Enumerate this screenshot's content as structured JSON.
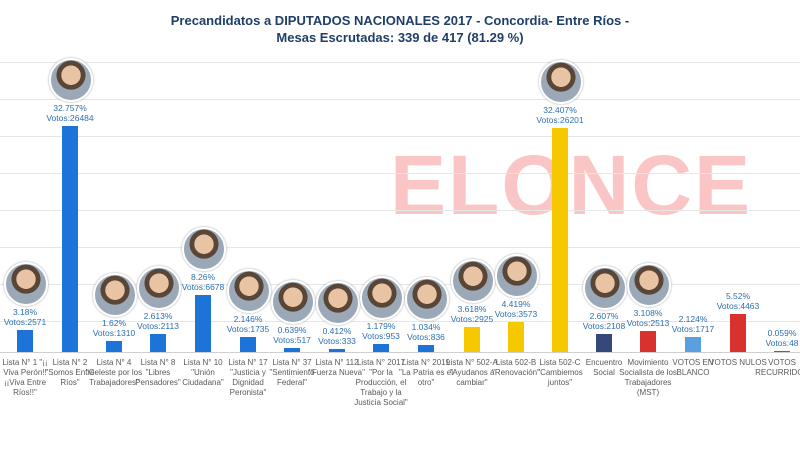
{
  "colors": {
    "blue": "#1e73d8",
    "yellow": "#f6c800",
    "navy": "#34497a",
    "red": "#d9312e",
    "lightblue": "#5aa0e0",
    "label": "#2d6eb0"
  },
  "watermark": "ELONCE",
  "chart_data": {
    "type": "bar",
    "title": "Precandidatos a DIPUTADOS NACIONALES 2017 - Concordia- Entre Ríos -",
    "subtitle": "Mesas Escrutadas: 339 de 417 (81.29 %)",
    "ylim": [
      0,
      35
    ],
    "categories": [
      "Lista N° 1 \"¡¡ Viva Perón!! ¡¡Viva Entre Ríos!!\"",
      "Lista N° 2 \"Somos Entre Ríos\"",
      "Lista N° 4 \"Celeste por los Trabajadores\"",
      "Lista N° 8 \"Libres Pensadores\"",
      "Lista N° 10 \"Unión Ciudadana\"",
      "Lista N° 17 \"Justicia y Dignidad Peronista\"",
      "Lista N° 37 \"Sentimiento Federal\"",
      "Lista N° 112 \"Fuerza Nueva\"",
      "Lista N° 2017 \"Por la Producción, el Trabajo y la Justicia Social\"",
      "Lista N° 2019 \"La Patria es el otro\"",
      "Lista N° 502-A \"Ayudanos a cambiar\"",
      "Lista 502-B \"Renovación\"",
      "Lista 502-C \"Cambiemos juntos\"",
      "Encuentro Social",
      "Movimiento Socialista de los Trabajadores (MST)",
      "VOTOS EN BLANCO",
      "VOTOS NULOS",
      "VOTOS RECURRIDOS"
    ],
    "values": [
      3.18,
      32.757,
      1.62,
      2.613,
      8.26,
      2.146,
      0.639,
      0.412,
      1.179,
      1.034,
      3.618,
      4.419,
      32.407,
      2.607,
      3.108,
      2.124,
      5.52,
      0.059
    ],
    "pct_labels": [
      "3.18%",
      "32.757%",
      "1.62%",
      "2.613%",
      "8.26%",
      "2.146%",
      "0.639%",
      "0.412%",
      "1.179%",
      "1.034%",
      "3.618%",
      "4.419%",
      "32.407%",
      "2.607%",
      "3.108%",
      "2.124%",
      "5.52%",
      "0.059%"
    ],
    "vote_labels": [
      "Votos:2571",
      "Votos:26484",
      "Votos:1310",
      "Votos:2113",
      "Votos:6678",
      "Votos:1735",
      "Votos:517",
      "Votos:333",
      "Votos:953",
      "Votos:836",
      "Votos:2925",
      "Votos:3573",
      "Votos:26201",
      "Votos:2108",
      "Votos:2513",
      "Votos:1717",
      "Votos:4463",
      "Votos:48"
    ],
    "bar_colors": [
      "blue",
      "blue",
      "blue",
      "blue",
      "blue",
      "blue",
      "blue",
      "blue",
      "blue",
      "blue",
      "yellow",
      "yellow",
      "yellow",
      "navy",
      "red",
      "lightblue",
      "red",
      "blue"
    ],
    "photo": [
      "politician-photo",
      "politician-photo",
      "politician-photo",
      "politician-photo",
      "politician-photo",
      "politician-photo",
      "politician-photo",
      "politician-photo",
      "politician-photo",
      "politician-photo",
      "politician-photo",
      "politician-photo",
      "politician-photo",
      "politician-photo",
      "politician-photo",
      "",
      "",
      ""
    ]
  }
}
